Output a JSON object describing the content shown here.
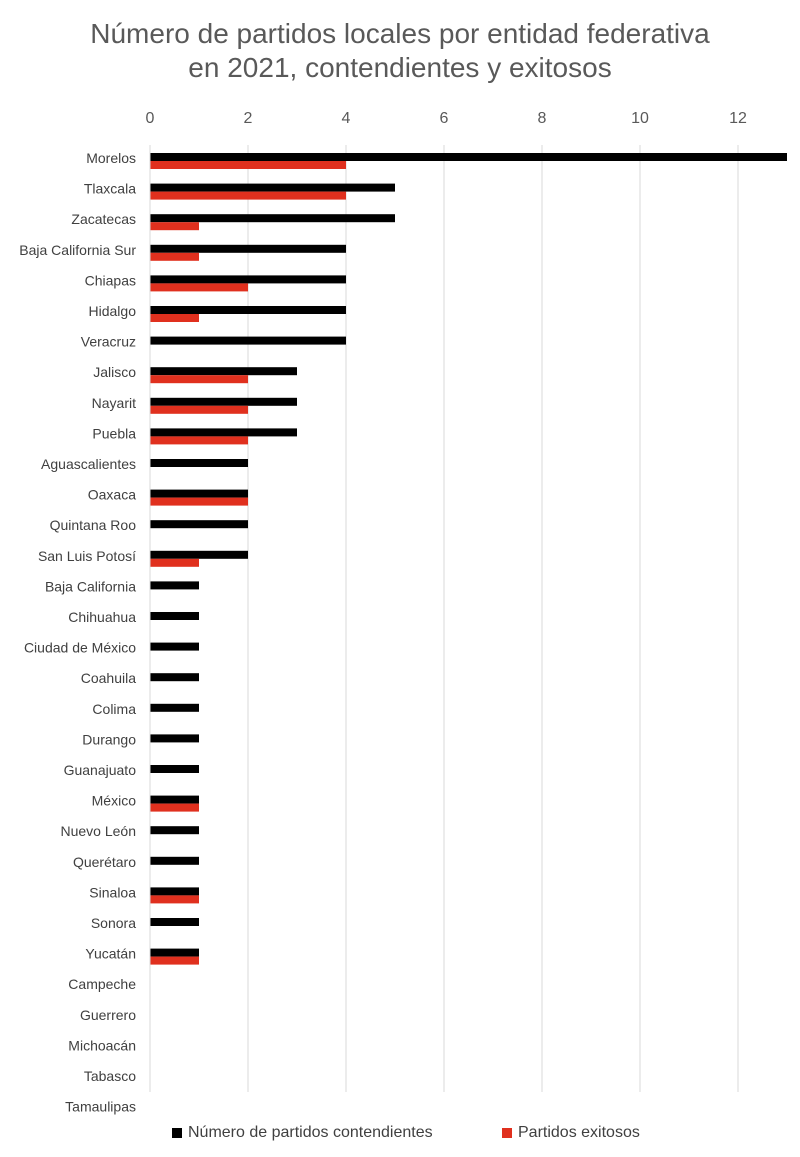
{
  "chart_data": {
    "type": "bar",
    "orientation": "horizontal",
    "title": [
      "Número de partidos locales por entidad federativa",
      "en 2021, contendientes y exitosos"
    ],
    "xlim": [
      0,
      13
    ],
    "xticks": [
      0,
      2,
      4,
      6,
      8,
      10,
      12
    ],
    "grid": true,
    "legend_position": "bottom",
    "categories": [
      "Morelos",
      "Tlaxcala",
      "Zacatecas",
      "Baja California Sur",
      "Chiapas",
      "Hidalgo",
      "Veracruz",
      "Jalisco",
      "Nayarit",
      "Puebla",
      "Aguascalientes",
      "Oaxaca",
      "Quintana Roo",
      "San Luis Potosí",
      "Baja California",
      "Chihuahua",
      "Ciudad de México",
      "Coahuila",
      "Colima",
      "Durango",
      "Guanajuato",
      "México",
      "Nuevo León",
      "Querétaro",
      "Sinaloa",
      "Sonora",
      "Yucatán",
      "Campeche",
      "Guerrero",
      "Michoacán",
      "Tabasco",
      "Tamaulipas"
    ],
    "series": [
      {
        "name": "Número de partidos contendientes",
        "color": "#000000",
        "values": [
          13,
          5,
          5,
          4,
          4,
          4,
          4,
          3,
          3,
          3,
          2,
          2,
          2,
          2,
          1,
          1,
          1,
          1,
          1,
          1,
          1,
          1,
          1,
          1,
          1,
          1,
          1,
          0,
          0,
          0,
          0,
          0
        ]
      },
      {
        "name": "Partidos exitosos",
        "color": "#e0301e",
        "values": [
          4,
          4,
          1,
          1,
          2,
          1,
          0,
          2,
          2,
          2,
          0,
          2,
          0,
          1,
          0,
          0,
          0,
          0,
          0,
          0,
          0,
          1,
          0,
          0,
          1,
          0,
          1,
          0,
          0,
          0,
          0,
          0
        ]
      }
    ]
  }
}
